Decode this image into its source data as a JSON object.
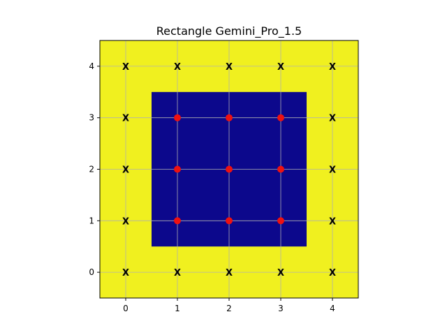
{
  "chart_data": {
    "type": "heatmap",
    "title": "Rectangle Gemini_Pro_1.5",
    "xlabel": "",
    "ylabel": "",
    "xlim": [
      -0.5,
      4.5
    ],
    "ylim": [
      -0.5,
      4.5
    ],
    "x_ticks": [
      "0",
      "1",
      "2",
      "3",
      "4"
    ],
    "y_ticks": [
      "0",
      "1",
      "2",
      "3",
      "4"
    ],
    "grid": true,
    "colors": {
      "background": "#f0f01f",
      "rectangle": "#0c088c",
      "marker": "#ee1111",
      "grid": "#b0b0b0"
    },
    "rectangle": {
      "x0": 0.5,
      "x1": 3.5,
      "y0": 0.5,
      "y1": 3.5
    },
    "x_marker_label": "X",
    "x_markers": [
      [
        0,
        0
      ],
      [
        1,
        0
      ],
      [
        2,
        0
      ],
      [
        3,
        0
      ],
      [
        4,
        0
      ],
      [
        0,
        1
      ],
      [
        4,
        1
      ],
      [
        0,
        2
      ],
      [
        4,
        2
      ],
      [
        0,
        3
      ],
      [
        4,
        3
      ],
      [
        0,
        4
      ],
      [
        1,
        4
      ],
      [
        2,
        4
      ],
      [
        3,
        4
      ],
      [
        4,
        4
      ]
    ],
    "dot_markers": [
      [
        1,
        1
      ],
      [
        2,
        1
      ],
      [
        3,
        1
      ],
      [
        1,
        2
      ],
      [
        2,
        2
      ],
      [
        3,
        2
      ],
      [
        1,
        3
      ],
      [
        2,
        3
      ],
      [
        3,
        3
      ]
    ]
  }
}
